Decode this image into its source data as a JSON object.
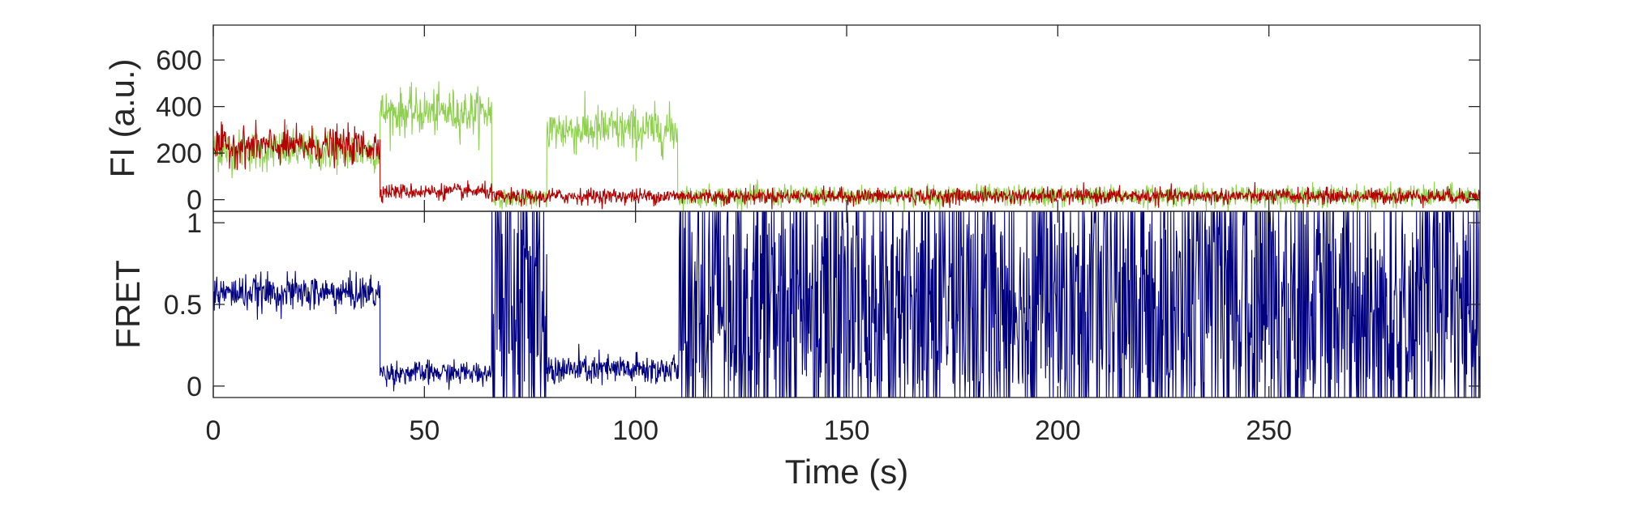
{
  "chart_data": [
    {
      "type": "line",
      "panel": "top",
      "ylabel": "FI (a.u.)",
      "xlim": [
        0,
        300
      ],
      "ylim": [
        -50,
        750
      ],
      "yticks": [
        0,
        200,
        400,
        600
      ],
      "ytick_labels": [
        "0",
        "200",
        "400",
        "600"
      ],
      "grid": false,
      "series": [
        {
          "color": "#8fd14f",
          "segments": [
            {
              "t0": 0,
              "t1": 39.5,
              "mean": 210,
              "noise": 75
            },
            {
              "t0": 39.5,
              "t1": 66,
              "mean": 375,
              "noise": 80
            },
            {
              "t0": 66,
              "t1": 79,
              "mean": 5,
              "noise": 30
            },
            {
              "t0": 79,
              "t1": 110,
              "mean": 300,
              "noise": 85
            },
            {
              "t0": 110,
              "t1": 300,
              "mean": 15,
              "noise": 38
            }
          ]
        },
        {
          "color": "#b40000",
          "segments": [
            {
              "t0": 0,
              "t1": 39.5,
              "mean": 230,
              "noise": 65
            },
            {
              "t0": 39.5,
              "t1": 66,
              "mean": 35,
              "noise": 28
            },
            {
              "t0": 66,
              "t1": 79,
              "mean": 10,
              "noise": 28
            },
            {
              "t0": 79,
              "t1": 110,
              "mean": 15,
              "noise": 28
            },
            {
              "t0": 110,
              "t1": 300,
              "mean": 15,
              "noise": 28
            }
          ]
        }
      ]
    },
    {
      "type": "line",
      "panel": "bottom",
      "xlabel": "Time (s)",
      "ylabel": "FRET",
      "xlim": [
        0,
        300
      ],
      "ylim": [
        -0.07,
        1.07
      ],
      "xticks": [
        0,
        50,
        100,
        150,
        200,
        250
      ],
      "xtick_labels": [
        "0",
        "50",
        "100",
        "150",
        "200",
        "250"
      ],
      "yticks": [
        0,
        0.5,
        1
      ],
      "ytick_labels": [
        "0",
        "0.5",
        "1"
      ],
      "grid": false,
      "series": [
        {
          "color": "#000080",
          "segments": [
            {
              "t0": 0,
              "t1": 39.5,
              "mean": 0.57,
              "noise": 0.09
            },
            {
              "t0": 39.5,
              "t1": 66,
              "mean": 0.08,
              "noise": 0.06
            },
            {
              "t0": 66,
              "t1": 79,
              "mean": 0.5,
              "noise": 0.5
            },
            {
              "t0": 79,
              "t1": 110,
              "mean": 0.1,
              "noise": 0.08
            },
            {
              "t0": 110,
              "t1": 300,
              "mean": 0.5,
              "noise": 0.5
            }
          ]
        }
      ]
    }
  ]
}
